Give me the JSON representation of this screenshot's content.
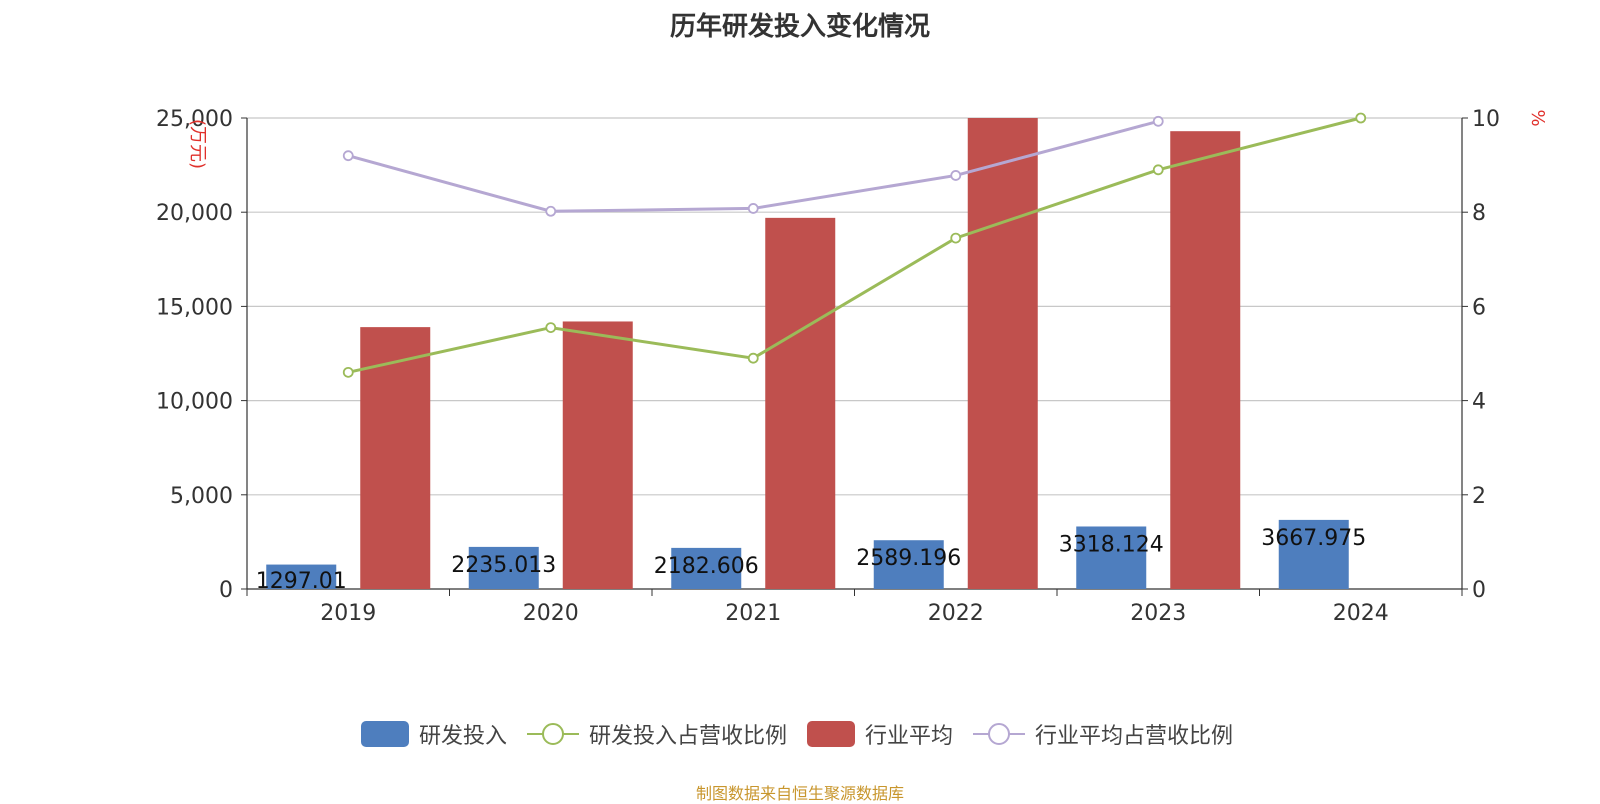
{
  "chart_data": {
    "type": "bar",
    "title": "历年研发投入变化情况",
    "categories": [
      "2019",
      "2020",
      "2021",
      "2022",
      "2023",
      "2024"
    ],
    "left_axis": {
      "label": "(万元)",
      "ylim": [
        0,
        25000
      ],
      "ticks": [
        "0",
        "5,000",
        "10,000",
        "15,000",
        "20,000",
        "25,000"
      ]
    },
    "right_axis": {
      "label": "%",
      "ylim": [
        0,
        10
      ],
      "ticks": [
        "0",
        "2",
        "4",
        "6",
        "8",
        "10"
      ]
    },
    "grid": true,
    "legend_position": "bottom",
    "series": [
      {
        "name": "研发投入",
        "kind": "bar",
        "axis": "left",
        "color": "#4e7ebe",
        "values": [
          1297.01,
          2235.013,
          2182.606,
          2589.196,
          3318.124,
          3667.975
        ],
        "labels": [
          "1297.01",
          "2235.013",
          "2182.606",
          "2589.196",
          "3318.124",
          "3667.975"
        ]
      },
      {
        "name": "研发投入占营收比例",
        "kind": "line",
        "axis": "right",
        "color": "#9bbb59",
        "values": [
          4.6,
          5.55,
          4.9,
          7.45,
          8.9,
          10.0
        ]
      },
      {
        "name": "行业平均",
        "kind": "bar",
        "axis": "left",
        "color": "#c0504d",
        "values": [
          13900,
          14200,
          19700,
          25000,
          24300,
          null
        ]
      },
      {
        "name": "行业平均占营收比例",
        "kind": "line",
        "axis": "right",
        "color": "#b5a7d2",
        "values": [
          9.2,
          8.02,
          8.08,
          8.78,
          9.93,
          null
        ]
      }
    ]
  },
  "source_note": "制图数据来自恒生聚源数据库"
}
